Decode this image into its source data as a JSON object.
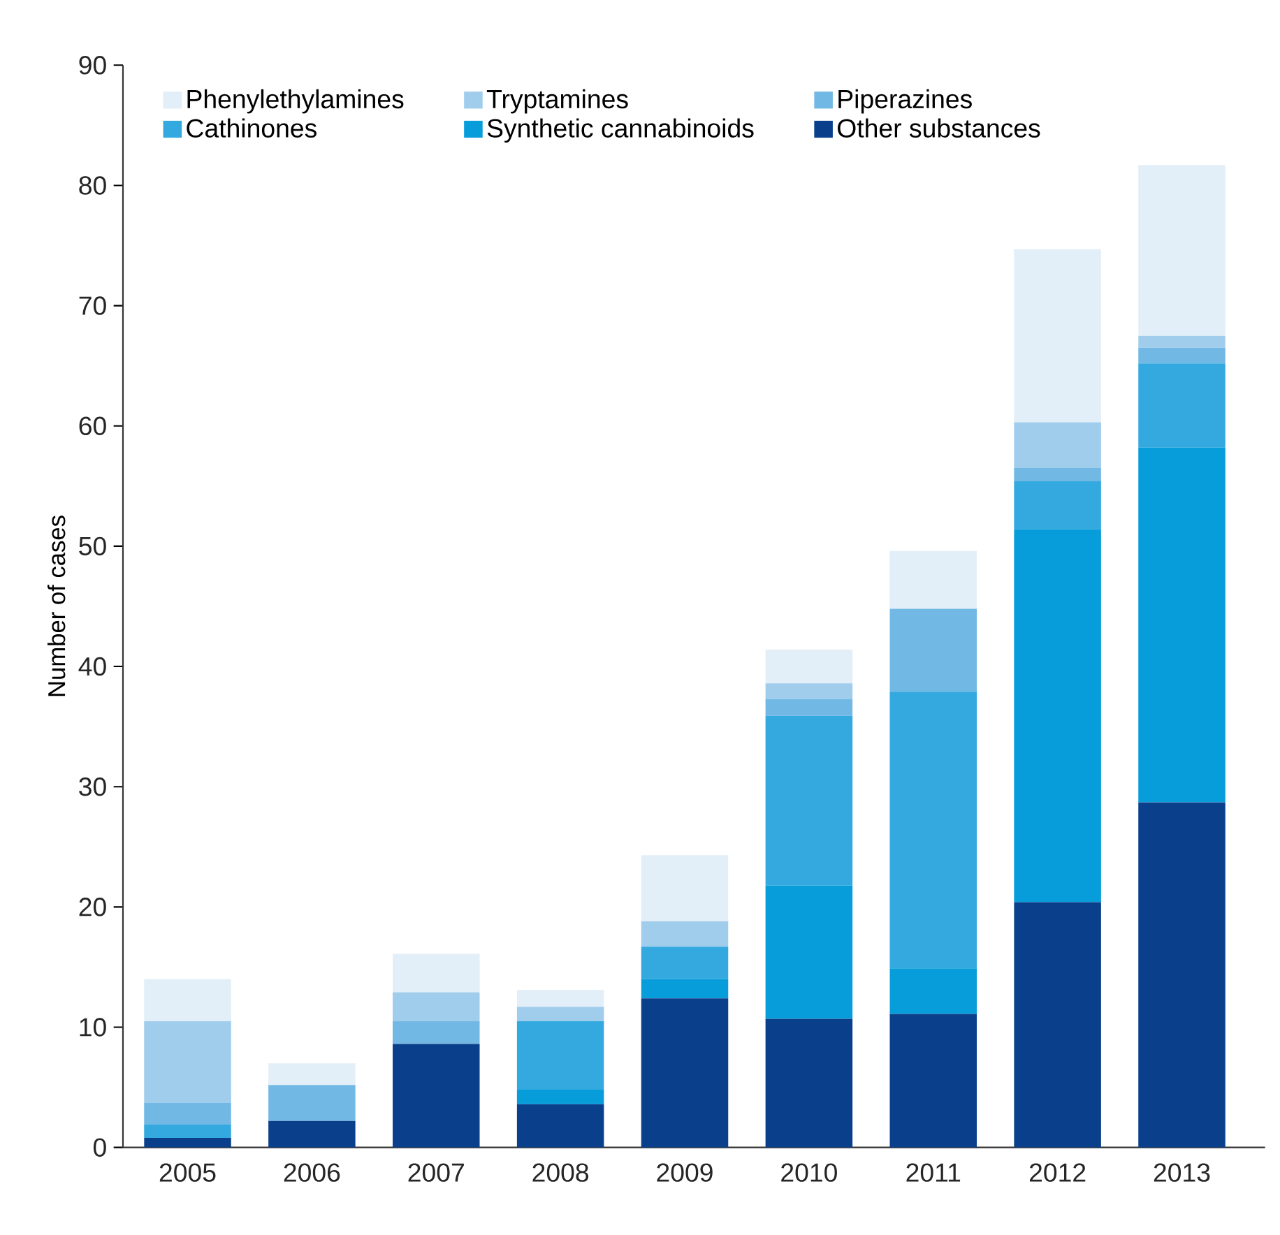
{
  "chart_data": {
    "type": "bar",
    "stacked": true,
    "ylabel": "Number of cases",
    "categories": [
      "2005",
      "2006",
      "2007",
      "2008",
      "2009",
      "2010",
      "2011",
      "2012",
      "2013"
    ],
    "series": [
      {
        "name": "Other substances",
        "color": "#0a408b",
        "values": [
          0.8,
          2.2,
          8.6,
          3.6,
          12.4,
          10.7,
          11.1,
          20.4,
          28.7
        ]
      },
      {
        "name": "Synthetic cannabinoids",
        "color": "#069dda",
        "values": [
          0,
          0,
          0,
          1.2,
          1.6,
          11.1,
          3.8,
          31.0,
          29.5
        ]
      },
      {
        "name": "Cathinones",
        "color": "#33a9df",
        "values": [
          1.1,
          0,
          0,
          5.7,
          2.7,
          14.1,
          23.0,
          4.0,
          7.0
        ]
      },
      {
        "name": "Piperazines",
        "color": "#72b8e5",
        "values": [
          1.8,
          3.0,
          1.9,
          0,
          0,
          1.4,
          6.9,
          1.1,
          1.3
        ]
      },
      {
        "name": "Tryptamines",
        "color": "#a1cdec",
        "values": [
          6.8,
          0,
          2.4,
          1.2,
          2.1,
          1.3,
          0,
          3.8,
          1.0
        ]
      },
      {
        "name": "Phenylethylamines",
        "color": "#e3eff8",
        "values": [
          3.5,
          1.8,
          3.2,
          1.4,
          5.5,
          2.8,
          4.8,
          14.4,
          14.2
        ]
      }
    ],
    "ylim": [
      0,
      90
    ],
    "yticks": [
      0,
      10,
      20,
      30,
      40,
      50,
      60,
      70,
      80,
      90
    ],
    "legend": "top left"
  }
}
